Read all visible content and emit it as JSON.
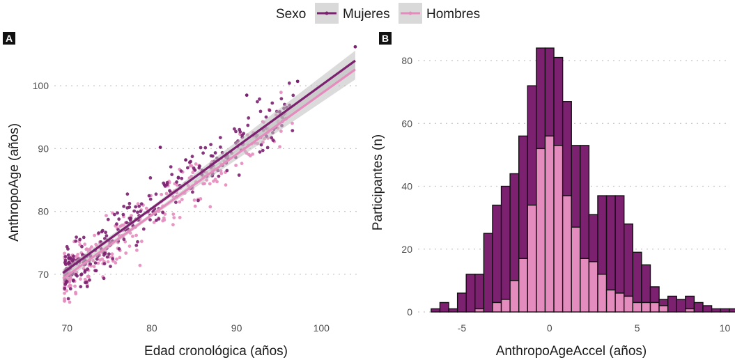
{
  "legend": {
    "title": "Sexo",
    "entries": [
      {
        "label": "Mujeres",
        "color": "#7b2170"
      },
      {
        "label": "Hombres",
        "color": "#e58cbf"
      }
    ]
  },
  "chart_data": [
    {
      "panel": "A",
      "type": "scatter",
      "xlabel": "Edad cronológica (años)",
      "ylabel": "AnthropoAge (años)",
      "xlim": [
        68.5,
        104.5
      ],
      "ylim": [
        64,
        107
      ],
      "xticks": [
        70,
        80,
        90,
        100
      ],
      "yticks": [
        70,
        80,
        90,
        100
      ],
      "grid": "horizontal dotted",
      "trendlines": [
        {
          "series": "Mujeres",
          "x": [
            69.5,
            104
          ],
          "y": [
            70.2,
            104.0
          ]
        },
        {
          "series": "Hombres",
          "x": [
            69.5,
            104
          ],
          "y": [
            69.3,
            102.6
          ]
        }
      ],
      "points_note": "scatter of several hundred participants per sex, concentrated between 70 and 90 years"
    },
    {
      "panel": "B",
      "type": "bar",
      "subtype": "stacked histogram",
      "xlabel": "AnthropoAgeAccel (años)",
      "ylabel": "Participantes (n)",
      "xlim": [
        -7.5,
        10.3
      ],
      "ylim": [
        0,
        86
      ],
      "xticks": [
        -5,
        0,
        5,
        10
      ],
      "yticks": [
        0,
        20,
        40,
        60,
        80
      ],
      "grid": "horizontal dotted",
      "bin_start": -6.75,
      "bin_width": 0.5,
      "series": [
        {
          "name": "Hombres",
          "values": [
            0,
            0,
            0,
            0,
            0,
            1,
            0,
            3,
            4,
            10,
            17,
            34,
            52,
            56,
            53,
            37,
            27,
            17,
            16,
            12,
            7,
            6,
            5,
            3,
            3,
            3,
            2,
            0,
            0,
            1,
            0,
            0,
            0,
            0,
            0,
            0
          ]
        },
        {
          "name": "Mujeres",
          "values": [
            1,
            3,
            1,
            6,
            12,
            11,
            25,
            31,
            36,
            34,
            39,
            38,
            32,
            28,
            28,
            30,
            26,
            36,
            15,
            25,
            30,
            31,
            23,
            16,
            12,
            5,
            2,
            5,
            4,
            4,
            3,
            2,
            1,
            1,
            1,
            0
          ]
        }
      ]
    }
  ]
}
